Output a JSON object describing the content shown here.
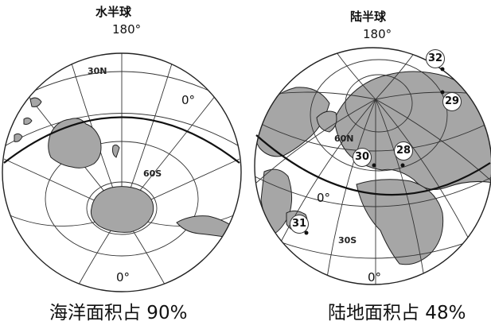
{
  "left_globe": {
    "title": "水半球",
    "top_label": "180°",
    "bottom_label": "0°",
    "equator_label": "0°",
    "lat_n_label": "30N",
    "lat_s_label": "60S",
    "caption": "海洋面积占 90%"
  },
  "right_globe": {
    "title": "陆半球",
    "top_label": "180°",
    "bottom_label": "0°",
    "equator_label": "0°",
    "lat_n_label": "60N",
    "lat_s_label": "30S",
    "caption": "陆地面积占 48%",
    "markers": [
      "32",
      "29",
      "30",
      "28",
      "31"
    ]
  },
  "colors": {
    "land": "#a6a6a6",
    "line": "#333333",
    "background": "#ffffff"
  }
}
